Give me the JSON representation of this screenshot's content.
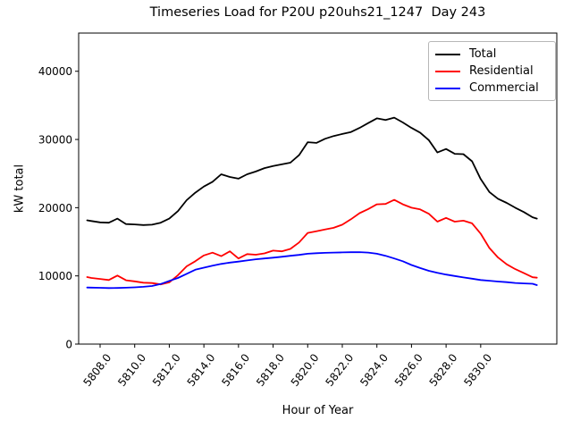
{
  "chart_data": {
    "type": "line",
    "title": "Timeseries Load for P20U p20uhs21_1247  Day 243",
    "xlabel": "Hour of Year",
    "ylabel": "kW total",
    "grid": false,
    "legend_position": "upper right",
    "xlim": [
      5806.76,
      5834.4
    ],
    "ylim": [
      0,
      45600
    ],
    "x_ticks": [
      5808,
      5810,
      5812,
      5814,
      5816,
      5818,
      5820,
      5822,
      5824,
      5826,
      5828,
      5830
    ],
    "x_tick_labels": [
      "5808.0",
      "5810.0",
      "5812.0",
      "5814.0",
      "5816.0",
      "5818.0",
      "5820.0",
      "5822.0",
      "5824.0",
      "5826.0",
      "5828.0",
      "5830.0"
    ],
    "y_ticks": [
      0,
      10000,
      20000,
      30000,
      40000
    ],
    "y_tick_labels": [
      "0",
      "10000",
      "20000",
      "30000",
      "40000"
    ],
    "x": [
      5807.25,
      5807.5,
      5808.0,
      5808.5,
      5809.0,
      5809.5,
      5810.0,
      5810.5,
      5811.0,
      5811.5,
      5812.0,
      5812.5,
      5813.0,
      5813.5,
      5814.0,
      5814.5,
      5815.0,
      5815.5,
      5816.0,
      5816.5,
      5817.0,
      5817.5,
      5818.0,
      5818.5,
      5819.0,
      5819.5,
      5820.0,
      5820.5,
      5821.0,
      5821.5,
      5822.0,
      5822.5,
      5823.0,
      5823.5,
      5824.0,
      5824.5,
      5825.0,
      5825.5,
      5826.0,
      5826.5,
      5827.0,
      5827.5,
      5828.0,
      5828.5,
      5829.0,
      5829.5,
      5830.0,
      5830.5,
      5831.0,
      5831.5,
      5832.0,
      5832.5,
      5833.0,
      5833.25
    ],
    "series": [
      {
        "name": "Total",
        "color": "#000000",
        "values": [
          18150,
          18050,
          17850,
          17800,
          18400,
          17600,
          17550,
          17450,
          17500,
          17800,
          18400,
          19500,
          21100,
          22200,
          23100,
          23800,
          24900,
          24500,
          24250,
          24900,
          25300,
          25800,
          26100,
          26350,
          26600,
          27700,
          29600,
          29500,
          30100,
          30500,
          30800,
          31100,
          31700,
          32400,
          33100,
          32850,
          33200,
          32500,
          31700,
          31000,
          29900,
          28100,
          28600,
          27900,
          27850,
          26800,
          24200,
          22300,
          21300,
          20700,
          20000,
          19350,
          18600,
          18400
        ]
      },
      {
        "name": "Residential",
        "color": "#ff0000",
        "values": [
          9830,
          9700,
          9550,
          9400,
          10050,
          9350,
          9200,
          9000,
          8950,
          8750,
          9050,
          10100,
          11400,
          12150,
          13000,
          13400,
          12900,
          13600,
          12550,
          13200,
          13100,
          13300,
          13700,
          13600,
          13950,
          14900,
          16300,
          16550,
          16800,
          17050,
          17500,
          18300,
          19200,
          19800,
          20500,
          20550,
          21150,
          20500,
          20000,
          19750,
          19100,
          17950,
          18500,
          17950,
          18100,
          17700,
          16200,
          14100,
          12700,
          11700,
          11000,
          10400,
          9800,
          9740
        ]
      },
      {
        "name": "Commercial",
        "color": "#0000ff",
        "values": [
          8300,
          8280,
          8250,
          8220,
          8230,
          8270,
          8320,
          8400,
          8520,
          8800,
          9260,
          9700,
          10300,
          10900,
          11200,
          11500,
          11750,
          11950,
          12100,
          12270,
          12430,
          12550,
          12670,
          12800,
          12950,
          13080,
          13250,
          13320,
          13380,
          13420,
          13450,
          13470,
          13480,
          13420,
          13250,
          12950,
          12550,
          12150,
          11600,
          11150,
          10750,
          10450,
          10200,
          9980,
          9780,
          9590,
          9400,
          9290,
          9170,
          9080,
          8960,
          8900,
          8850,
          8650
        ]
      }
    ]
  }
}
